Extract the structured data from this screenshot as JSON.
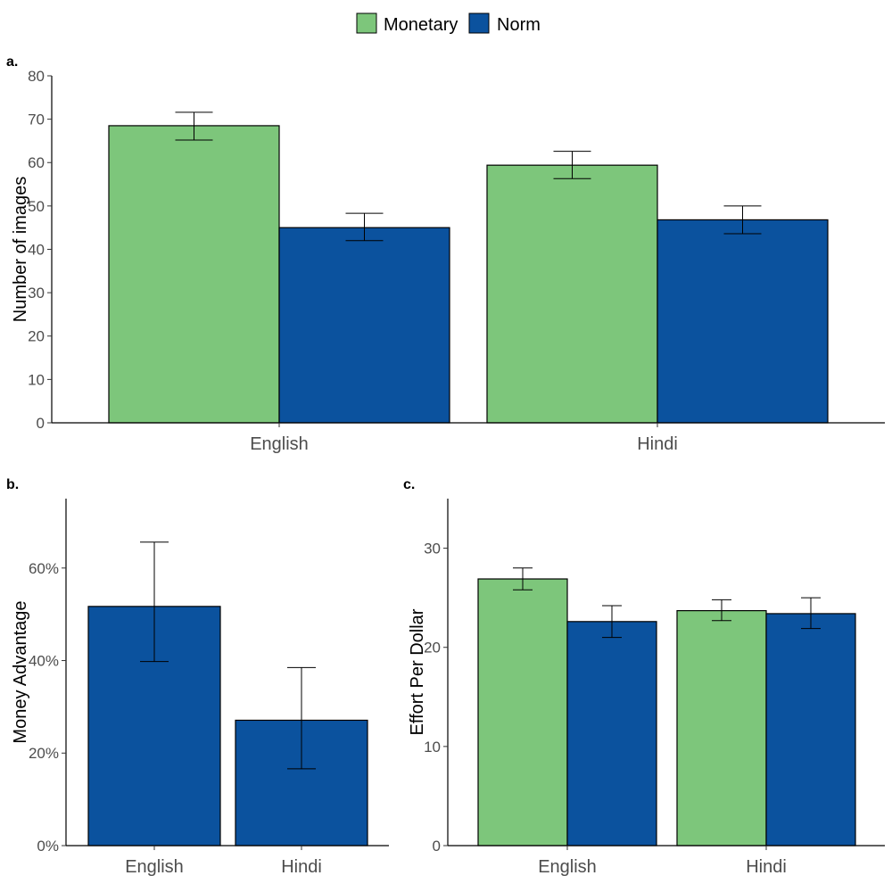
{
  "legend": {
    "position": "top",
    "entries": [
      {
        "label": "Monetary",
        "color": "#7dc67b"
      },
      {
        "label": "Norm",
        "color": "#0b529e"
      }
    ]
  },
  "chart_data": [
    {
      "panel": "a.",
      "type": "bar",
      "categories": [
        "English",
        "Hindi"
      ],
      "series": [
        {
          "name": "Monetary",
          "color": "#7dc67b",
          "values": [
            68.5,
            59.4
          ],
          "err_low": [
            65.2,
            56.3
          ],
          "err_high": [
            71.6,
            62.6
          ]
        },
        {
          "name": "Norm",
          "color": "#0b529e",
          "values": [
            45.0,
            46.8
          ],
          "err_low": [
            42.0,
            43.6
          ],
          "err_high": [
            48.3,
            50.0
          ]
        }
      ],
      "title": "",
      "xlabel": "",
      "ylabel": "Number of images",
      "ylim": [
        0,
        80
      ],
      "yticks": [
        0,
        10,
        20,
        30,
        40,
        50,
        60,
        70,
        80
      ],
      "ytick_labels": [
        "0",
        "10",
        "20",
        "30",
        "40",
        "50",
        "60",
        "70",
        "80"
      ],
      "grid": false
    },
    {
      "panel": "b.",
      "type": "bar",
      "categories": [
        "English",
        "Hindi"
      ],
      "series": [
        {
          "name": "Norm",
          "color": "#0b529e",
          "values": [
            51.7,
            27.1
          ],
          "err_low": [
            39.8,
            16.6
          ],
          "err_high": [
            65.6,
            38.5
          ]
        }
      ],
      "title": "",
      "xlabel": "",
      "ylabel": "Money Advantage",
      "ylim": [
        0,
        75
      ],
      "yticks": [
        0,
        20,
        40,
        60
      ],
      "ytick_labels": [
        "0%",
        "20%",
        "40%",
        "60%"
      ],
      "grid": false
    },
    {
      "panel": "c.",
      "type": "bar",
      "categories": [
        "English",
        "Hindi"
      ],
      "series": [
        {
          "name": "Monetary",
          "color": "#7dc67b",
          "values": [
            26.9,
            23.7
          ],
          "err_low": [
            25.8,
            22.7
          ],
          "err_high": [
            28.0,
            24.8
          ]
        },
        {
          "name": "Norm",
          "color": "#0b529e",
          "values": [
            22.6,
            23.4
          ],
          "err_low": [
            21.0,
            21.9
          ],
          "err_high": [
            24.2,
            25.0
          ]
        }
      ],
      "title": "",
      "xlabel": "",
      "ylabel": "Effort Per Dollar",
      "ylim": [
        0,
        35
      ],
      "yticks": [
        0,
        10,
        20,
        30
      ],
      "ytick_labels": [
        "0",
        "10",
        "20",
        "30"
      ],
      "grid": false
    }
  ]
}
